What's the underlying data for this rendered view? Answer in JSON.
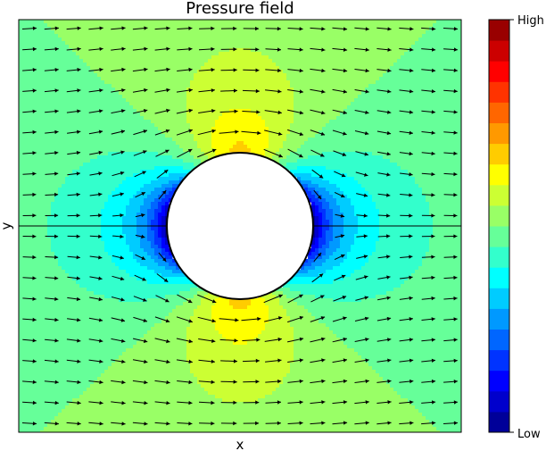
{
  "chart_data": {
    "type": "heatmap",
    "title": "Pressure field",
    "xlabel": "x",
    "ylabel": "y",
    "x_tick_labels": [],
    "y_tick_labels": [],
    "colormap": "jet",
    "contour_levels": 20,
    "colorbar": {
      "placement": "right",
      "tick_labels": [
        "High",
        "Low"
      ],
      "stops": [
        "#000080",
        "#0000ff",
        "#0080ff",
        "#00ffff",
        "#80ff80",
        "#ffff00",
        "#ff8000",
        "#ff0000",
        "#800000"
      ]
    },
    "overlay": "velocity-vector-field",
    "obstacle": "circle",
    "obstacle_color": "#ffffff",
    "flow_direction": "left-to-right",
    "grid": false
  }
}
